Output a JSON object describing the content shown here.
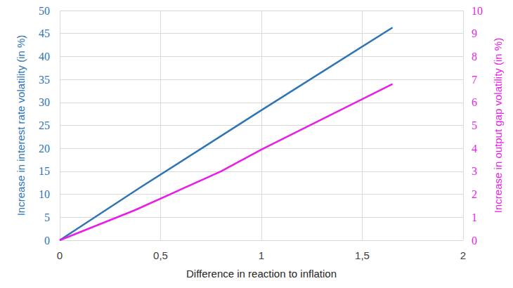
{
  "chart_data": {
    "type": "line",
    "xlabel": "Difference in reaction to inflation",
    "ylabel": "Increase in interest rate volatility (in %)",
    "y2label": "Increase in output gap volatility (in %)",
    "xlim": [
      0,
      2
    ],
    "xticks": [
      0,
      {
        "value": 0.5,
        "label": "0,5"
      },
      1,
      {
        "value": 1.5,
        "label": "1,5"
      },
      2
    ],
    "ylim": [
      0,
      50
    ],
    "yticks": [
      0,
      5,
      10,
      15,
      20,
      25,
      30,
      35,
      40,
      45,
      50
    ],
    "y2lim": [
      0,
      10
    ],
    "y2ticks": [
      0,
      1,
      2,
      3,
      4,
      5,
      6,
      7,
      8,
      9,
      10
    ],
    "grid": true,
    "series": [
      {
        "color": "#2e75b6",
        "marker": "none",
        "line_style": "solid",
        "x": [
          0,
          0.4,
          1,
          1.65
        ],
        "values": [
          0,
          11.5,
          28.3,
          46.3
        ]
      },
      {
        "color": "#e61ee6",
        "marker": "none",
        "line_style": "solid",
        "axis": "y2",
        "x": [
          0,
          0.37,
          0.8,
          1,
          1.65
        ],
        "values": [
          0,
          1.3,
          3.0,
          3.95,
          6.8
        ]
      }
    ]
  }
}
